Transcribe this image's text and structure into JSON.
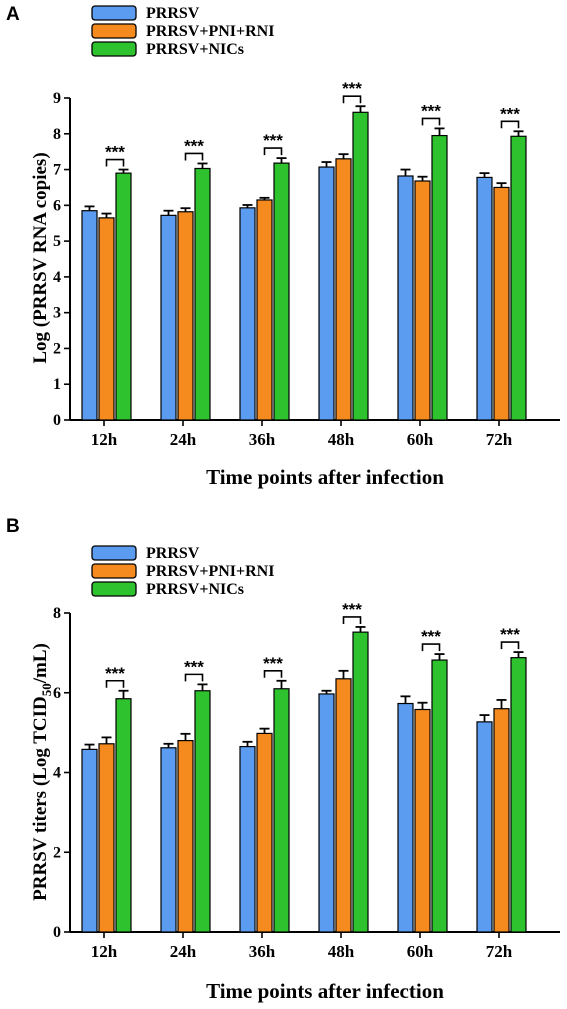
{
  "chart_data": [
    {
      "panel": "A",
      "type": "bar",
      "categories": [
        "12h",
        "24h",
        "36h",
        "48h",
        "60h",
        "72h"
      ],
      "series": [
        {
          "name": "PRRSV",
          "color": "#5b9bf0",
          "values": [
            5.85,
            5.72,
            5.93,
            7.07,
            6.82,
            6.78
          ],
          "errors": [
            0.12,
            0.13,
            0.08,
            0.14,
            0.18,
            0.12
          ]
        },
        {
          "name": "PRRSV+PNI+RNI",
          "color": "#f58a1f",
          "values": [
            5.65,
            5.82,
            6.15,
            7.3,
            6.68,
            6.5
          ],
          "errors": [
            0.12,
            0.1,
            0.06,
            0.13,
            0.12,
            0.12
          ]
        },
        {
          "name": "PRRSV+NICs",
          "color": "#2ec32e",
          "values": [
            6.9,
            7.03,
            7.18,
            8.6,
            7.95,
            7.93
          ],
          "errors": [
            0.1,
            0.14,
            0.14,
            0.17,
            0.2,
            0.14
          ]
        }
      ],
      "significance": [
        "***",
        "***",
        "***",
        "***",
        "***",
        "***"
      ],
      "xlabel": "Time points after infection",
      "ylabel": "Log (PRRSV RNA copies)",
      "ylim": [
        0,
        9
      ],
      "yticks": [
        "0",
        "1",
        "2",
        "3",
        "4",
        "5",
        "6",
        "7",
        "8",
        "9"
      ],
      "grid": false,
      "legend": "top-left"
    },
    {
      "panel": "B",
      "type": "bar",
      "categories": [
        "12h",
        "24h",
        "36h",
        "48h",
        "60h",
        "72h"
      ],
      "series": [
        {
          "name": "PRRSV",
          "color": "#5b9bf0",
          "values": [
            4.58,
            4.62,
            4.65,
            5.97,
            5.73,
            5.27
          ],
          "errors": [
            0.12,
            0.1,
            0.12,
            0.08,
            0.18,
            0.17
          ]
        },
        {
          "name": "PRRSV+PNI+RNI",
          "color": "#f58a1f",
          "values": [
            4.72,
            4.8,
            4.98,
            6.35,
            5.58,
            5.6
          ],
          "errors": [
            0.16,
            0.17,
            0.12,
            0.2,
            0.17,
            0.22
          ]
        },
        {
          "name": "PRRSV+NICs",
          "color": "#2ec32e",
          "values": [
            5.85,
            6.05,
            6.1,
            7.52,
            6.82,
            6.88
          ],
          "errors": [
            0.2,
            0.16,
            0.2,
            0.13,
            0.15,
            0.14
          ]
        }
      ],
      "significance": [
        "***",
        "***",
        "***",
        "***",
        "***",
        "***"
      ],
      "xlabel": "Time points after infection",
      "ylabel": "PRRSV titers (Log TCID",
      "ylabel_sub": "50",
      "ylabel_end": "/mL)",
      "ylim": [
        0,
        8
      ],
      "yticks": [
        "0",
        "2",
        "4",
        "6",
        "8"
      ],
      "grid": false,
      "legend": "top-left"
    }
  ]
}
